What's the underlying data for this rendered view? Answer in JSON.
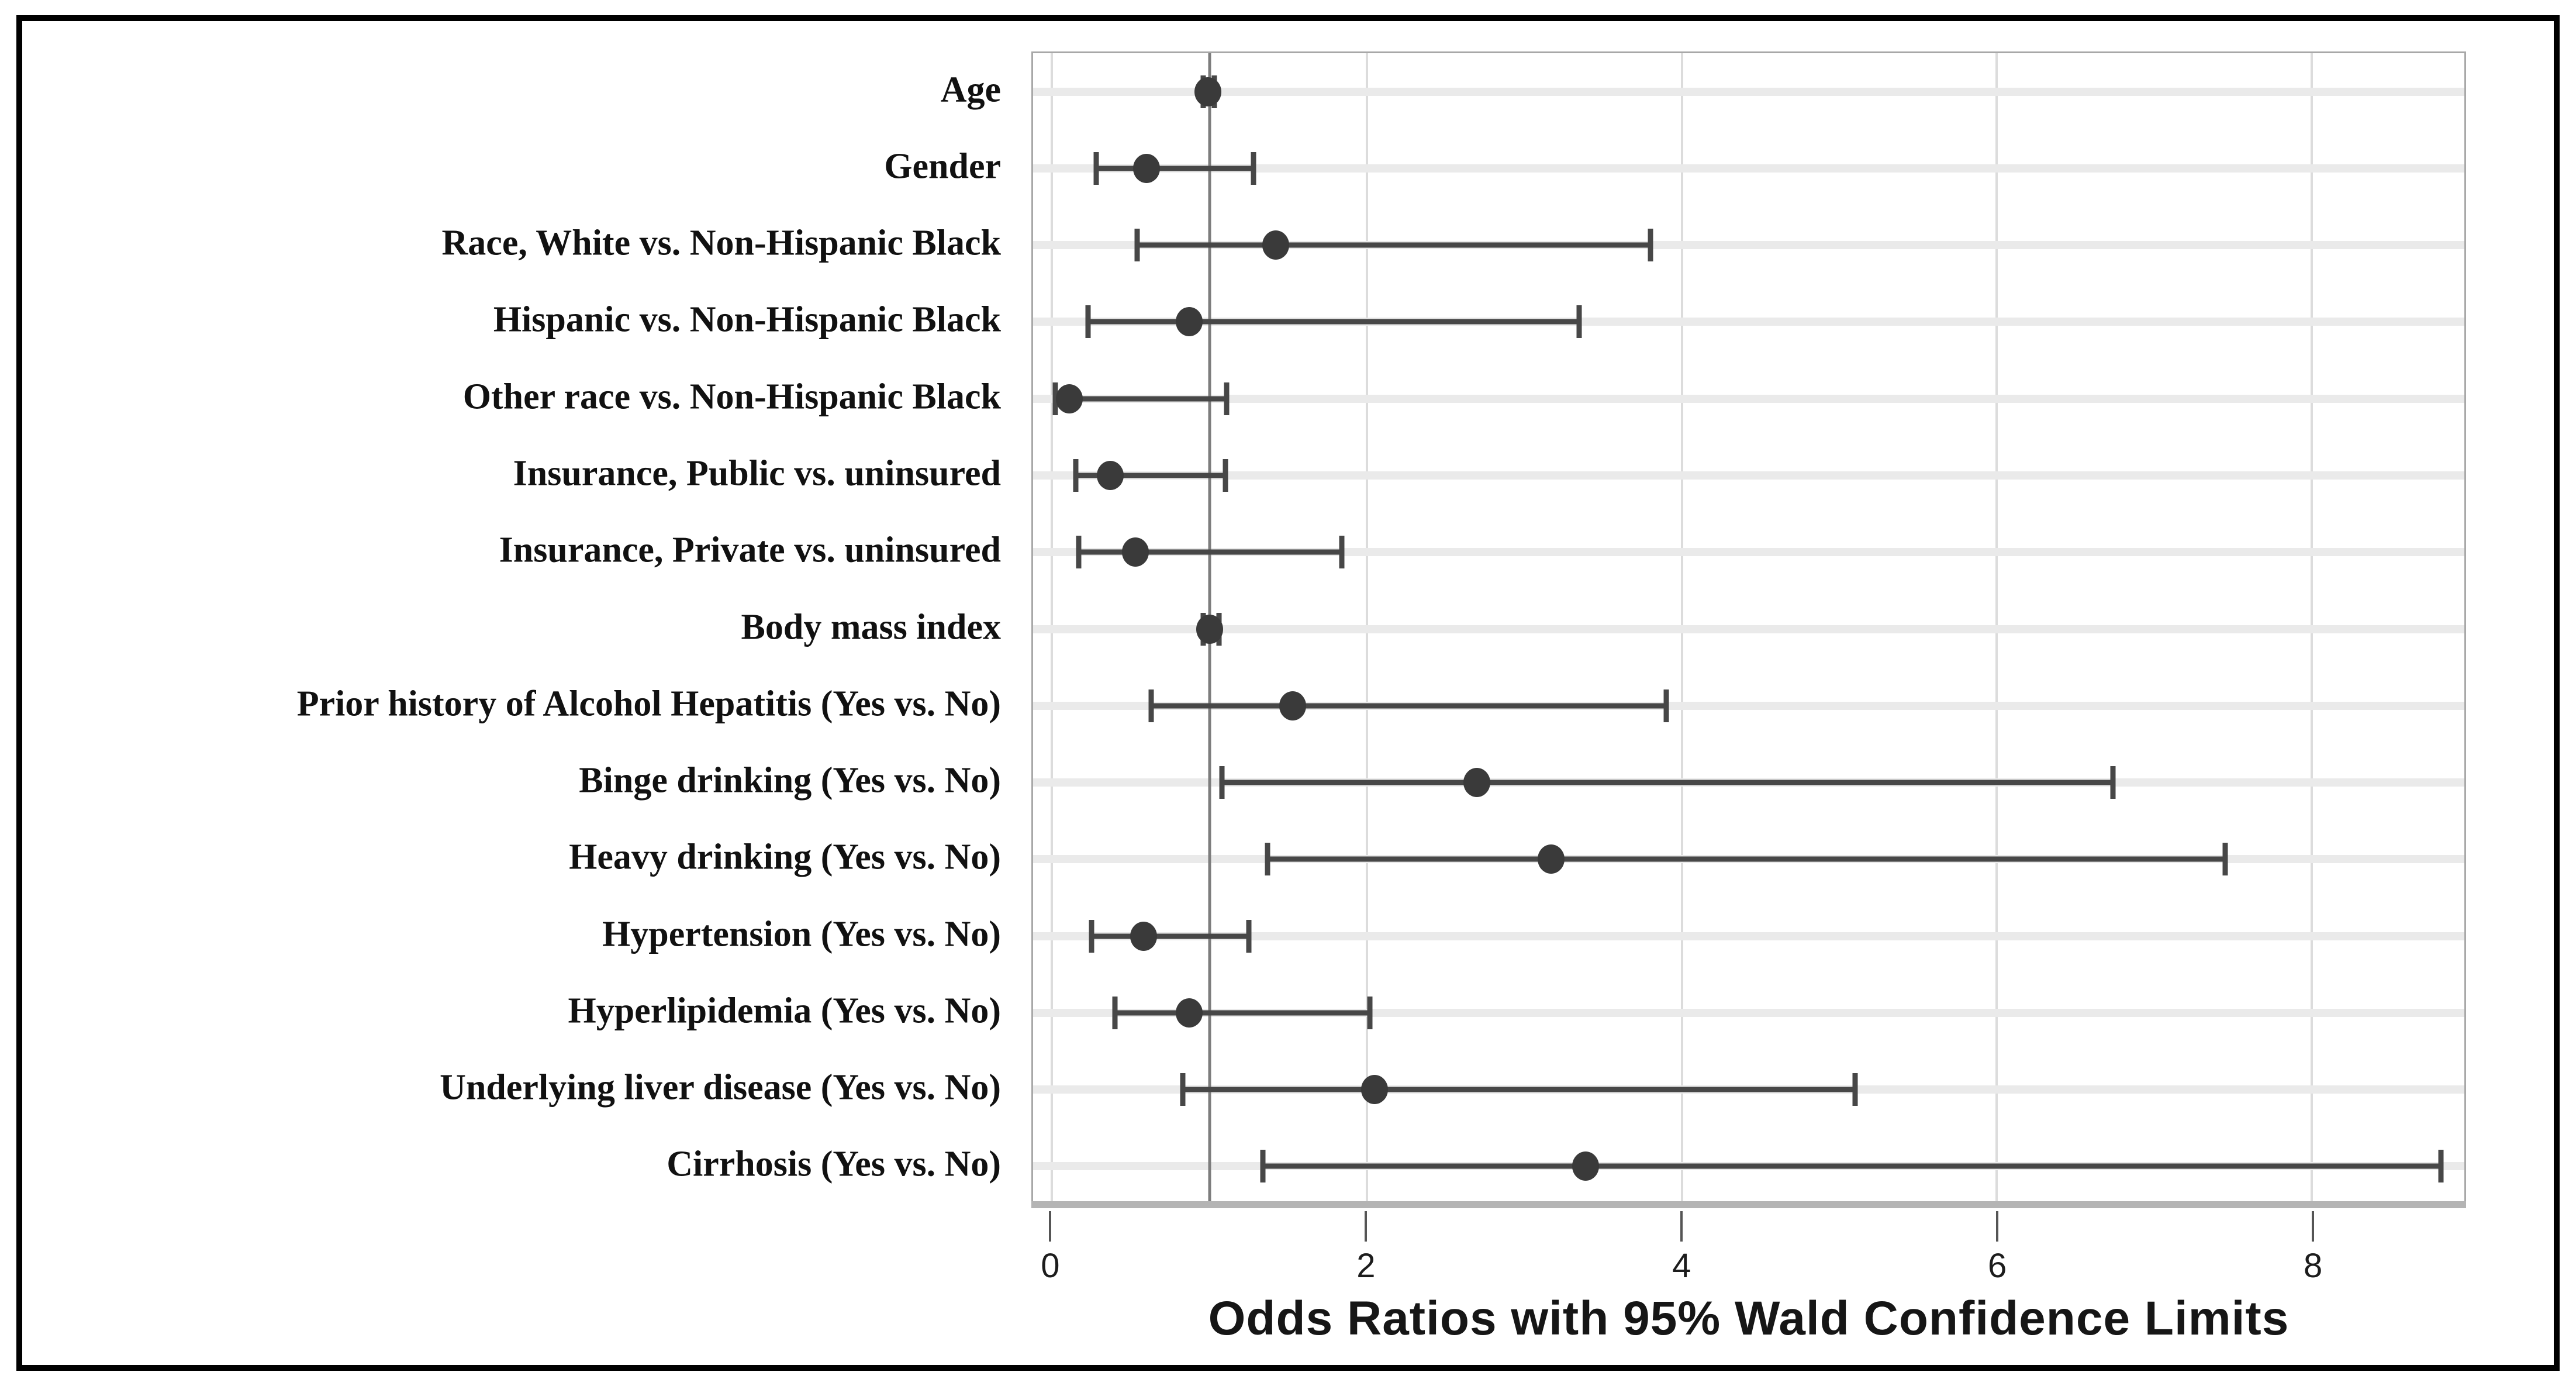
{
  "figure": {
    "background": "#ffffff",
    "border_color": "#000000"
  },
  "chart_data": {
    "type": "scatter",
    "subtype": "forest-plot",
    "xlabel": "Odds Ratios with 95% Wald Confidence Limits",
    "x_ticks": [
      0,
      2,
      4,
      6,
      8
    ],
    "x_tick_labels": [
      "0",
      "2",
      "4",
      "6",
      "8"
    ],
    "xlim": [
      -0.12,
      8.97
    ],
    "reference_line_x": 1,
    "grid": "vertical-major",
    "legend": "none",
    "categories": [
      "Age",
      "Gender",
      "Race, White vs. Non-Hispanic Black",
      "Hispanic vs. Non-Hispanic Black",
      "Other race vs. Non-Hispanic Black",
      "Insurance, Public vs. uninsured",
      "Insurance, Private vs. uninsured",
      "Body mass index",
      "Prior history of Alcohol Hepatitis (Yes vs. No)",
      "Binge drinking (Yes vs. No)",
      "Heavy drinking (Yes vs. No)",
      "Hypertension (Yes vs. No)",
      "Hyperlipidemia (Yes vs. No)",
      "Underlying liver disease (Yes vs. No)",
      "Cirrhosis (Yes vs. No)"
    ],
    "rows": [
      {
        "label": "Age",
        "odds_ratio": 0.99,
        "ci_low": 0.96,
        "ci_high": 1.03
      },
      {
        "label": "Gender",
        "odds_ratio": 0.6,
        "ci_low": 0.28,
        "ci_high": 1.28
      },
      {
        "label": "Race, White vs. Non-Hispanic Black",
        "odds_ratio": 1.42,
        "ci_low": 0.54,
        "ci_high": 3.8
      },
      {
        "label": "Hispanic vs. Non-Hispanic Black",
        "odds_ratio": 0.87,
        "ci_low": 0.23,
        "ci_high": 3.35
      },
      {
        "label": "Other race vs. Non-Hispanic Black",
        "odds_ratio": 0.11,
        "ci_low": 0.02,
        "ci_high": 1.11
      },
      {
        "label": "Insurance, Public vs. uninsured",
        "odds_ratio": 0.37,
        "ci_low": 0.15,
        "ci_high": 1.1
      },
      {
        "label": "Insurance, Private vs. uninsured",
        "odds_ratio": 0.53,
        "ci_low": 0.17,
        "ci_high": 1.84
      },
      {
        "label": "Body mass index",
        "odds_ratio": 1.0,
        "ci_low": 0.96,
        "ci_high": 1.06
      },
      {
        "label": "Prior history of Alcohol Hepatitis (Yes vs. No)",
        "odds_ratio": 1.53,
        "ci_low": 0.63,
        "ci_high": 3.9
      },
      {
        "label": "Binge drinking (Yes vs. No)",
        "odds_ratio": 2.7,
        "ci_low": 1.08,
        "ci_high": 6.74
      },
      {
        "label": "Heavy drinking (Yes vs. No)",
        "odds_ratio": 3.17,
        "ci_low": 1.37,
        "ci_high": 7.45
      },
      {
        "label": "Hypertension (Yes vs. No)",
        "odds_ratio": 0.58,
        "ci_low": 0.25,
        "ci_high": 1.25
      },
      {
        "label": "Hyperlipidemia (Yes vs. No)",
        "odds_ratio": 0.87,
        "ci_low": 0.4,
        "ci_high": 2.02
      },
      {
        "label": "Underlying liver disease (Yes vs. No)",
        "odds_ratio": 2.05,
        "ci_low": 0.83,
        "ci_high": 5.1
      },
      {
        "label": "Cirrhosis (Yes vs. No)",
        "odds_ratio": 3.39,
        "ci_low": 1.34,
        "ci_high": 8.82
      }
    ],
    "colors": {
      "marker": "#3a3a3a",
      "ci_line": "#474747",
      "reference_line": "#7d7d7d",
      "gridline": "#dcdcdc",
      "row_band": "#eaeaea",
      "plot_frame": "#a8a8a8"
    }
  }
}
